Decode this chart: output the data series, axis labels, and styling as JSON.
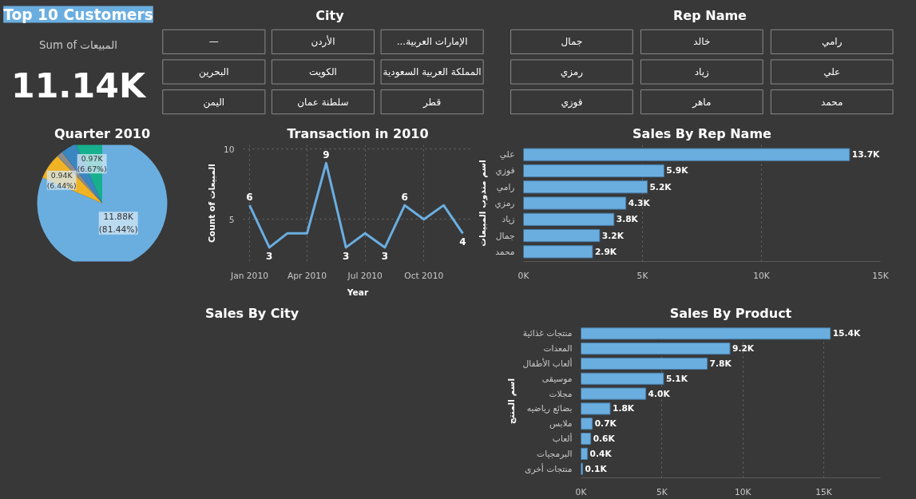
{
  "chart_data": [
    {
      "type": "other",
      "title": "Top 10 Customers",
      "annotations": [
        "Sum of المبيعات",
        "11.14K"
      ]
    },
    {
      "type": "other",
      "title": "City",
      "annotations": [
        "—",
        "الأردن",
        "...الإمارات العربية",
        "البحرين",
        "الكويت",
        "المملكة العربية السعودية",
        "اليمن",
        "سلطنة عمان",
        "قطر"
      ]
    },
    {
      "type": "other",
      "title": "Rep Name",
      "annotations": [
        "جمال",
        "خالد",
        "رامي",
        "رمزي",
        "زياد",
        "علي",
        "فوزي",
        "ماهر",
        "محمد"
      ]
    },
    {
      "type": "pie",
      "title": "Quarter 2010",
      "categories": [
        null,
        null,
        null,
        null,
        null
      ],
      "values": [
        81.44,
        6.44,
        1.5,
        3.95,
        6.67
      ],
      "colors": [
        "#6aaee0",
        "#f0b323",
        "#8c8c8c",
        "#3a86c0",
        "#17b08f"
      ],
      "value_labels": [
        "11.88K\n(81.44%)",
        "0.94K\n(6.44%)",
        null,
        null,
        "0.97K\n(6.67%)"
      ]
    },
    {
      "type": "line",
      "title": "Transaction in 2010",
      "xlabel": "Year",
      "ylabel": "Count of المبيعات",
      "color": "#6aaee0",
      "x": [
        "2010-01",
        "2010-02",
        "2010-03",
        "2010-04",
        "2010-05",
        "2010-06",
        "2010-07",
        "2010-08",
        "2010-09",
        "2010-10",
        "2010-11",
        "2010-12"
      ],
      "values": [
        6,
        3,
        4,
        4,
        9,
        3,
        4,
        3,
        6,
        5,
        6,
        4
      ],
      "value_labels": [
        "6",
        "3",
        null,
        null,
        "9",
        "3",
        null,
        "3",
        "6",
        null,
        null,
        "4"
      ],
      "xlim": [
        "2009-12-22",
        "2010-12-16"
      ],
      "ylim": [
        2,
        10.3
      ],
      "xticks": [
        {
          "value": "2010-01",
          "label": "Jan 2010"
        },
        {
          "value": "2010-04",
          "label": "Apr 2010"
        },
        {
          "value": "2010-07",
          "label": "Jul 2010"
        },
        {
          "value": "2010-10",
          "label": "Oct 2010"
        }
      ],
      "yticks": [
        5,
        10
      ],
      "grid": true
    },
    {
      "type": "bar",
      "orientation": "horizontal",
      "title": "Sales By Rep Name",
      "ylabel": "اسم مندوب المبيعات",
      "color": "#6aaee0",
      "categories": [
        "علي",
        "فوزي",
        "رامي",
        "رمزي",
        "زياد",
        "جمال",
        "محمد"
      ],
      "values": [
        13700,
        5900,
        5200,
        4300,
        3800,
        3200,
        2900
      ],
      "value_labels": [
        "13.7K",
        "5.9K",
        "5.2K",
        "4.3K",
        "3.8K",
        "3.2K",
        "2.9K"
      ],
      "xlim": [
        0,
        15000
      ],
      "xticks": [
        {
          "value": 0,
          "label": "0K"
        },
        {
          "value": 5000,
          "label": "5K"
        },
        {
          "value": 10000,
          "label": "10K"
        },
        {
          "value": 15000,
          "label": "15K"
        }
      ],
      "grid": "x"
    },
    {
      "type": "other",
      "title": "Sales By City"
    },
    {
      "type": "bar",
      "orientation": "horizontal",
      "title": "Sales By Product",
      "ylabel": "اسم المنتج",
      "color": "#6aaee0",
      "categories": [
        "منتجات غذائية",
        "المعدات",
        "ألعاب الأطفال",
        "موسيقى",
        "مجلات",
        "بضائع رياضيه",
        "ملابس",
        "ألعاب",
        "البرمجيات",
        "منتجات أخرى"
      ],
      "values": [
        15400,
        9200,
        7800,
        5100,
        4000,
        1800,
        700,
        600,
        400,
        100
      ],
      "value_labels": [
        "15.4K",
        "9.2K",
        "7.8K",
        "5.1K",
        "4.0K",
        "1.8K",
        "0.7K",
        "0.6K",
        "0.4K",
        "0.1K"
      ],
      "xlim": [
        0,
        18500
      ],
      "xticks": [
        {
          "value": 0,
          "label": "0K"
        },
        {
          "value": 5000,
          "label": "5K"
        },
        {
          "value": 10000,
          "label": "10K"
        },
        {
          "value": 15000,
          "label": "15K"
        }
      ],
      "grid": "x"
    }
  ]
}
